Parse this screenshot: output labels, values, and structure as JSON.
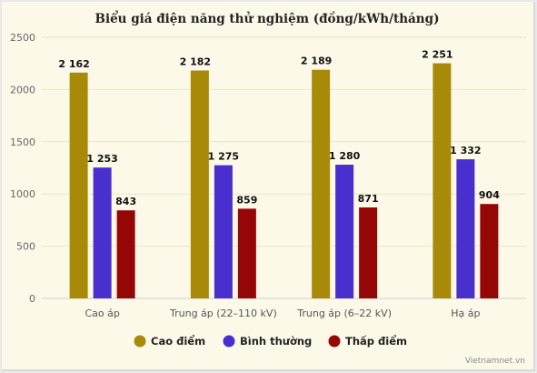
{
  "chart_data": {
    "type": "bar",
    "title": "Biểu giá điện năng thử nghiệm (đồng/kWh/tháng)",
    "categories": [
      "Cao áp",
      "Trung áp (22–110 kV)",
      "Trung áp (6–22 kV)",
      "Hạ áp"
    ],
    "series": [
      {
        "name": "Cao điểm",
        "color": "#a88a08",
        "values": [
          2162,
          2182,
          2189,
          2251
        ],
        "labels": [
          "2 162",
          "2 182",
          "2 189",
          "2 251"
        ]
      },
      {
        "name": "Bình thường",
        "color": "#4a2fcf",
        "values": [
          1253,
          1275,
          1280,
          1332
        ],
        "labels": [
          "1 253",
          "1 275",
          "1 280",
          "1 332"
        ]
      },
      {
        "name": "Thấp điểm",
        "color": "#950606",
        "values": [
          843,
          859,
          871,
          904
        ],
        "labels": [
          "843",
          "859",
          "871",
          "904"
        ]
      }
    ],
    "ylim": [
      0,
      2500
    ],
    "yticks": [
      0,
      500,
      1000,
      1500,
      2000,
      2500
    ],
    "grid": true,
    "legend_position": "bottom"
  },
  "watermark": "Vietnamnet.vn"
}
